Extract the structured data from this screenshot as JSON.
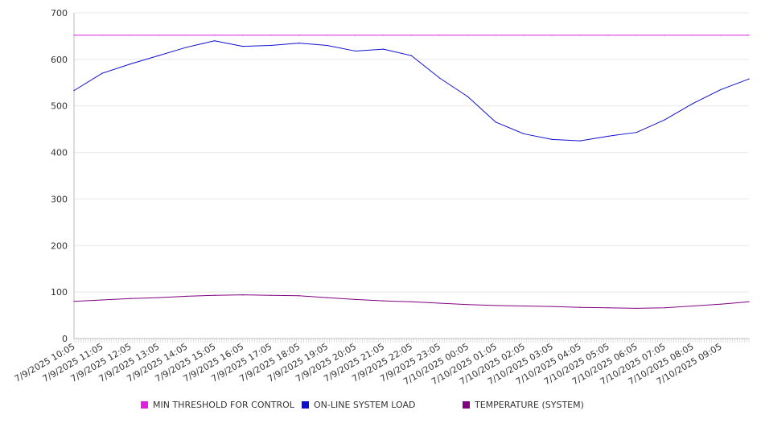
{
  "chart_data": {
    "type": "line",
    "ylim": [
      0,
      700
    ],
    "y_ticks": [
      0,
      100,
      200,
      300,
      400,
      500,
      600,
      700
    ],
    "x_tick_labels": [
      "7/9/2025 10:05",
      "7/9/2025 11:05",
      "7/9/2025 12:05",
      "7/9/2025 13:05",
      "7/9/2025 14:05",
      "7/9/2025 15:05",
      "7/9/2025 16:05",
      "7/9/2025 17:05",
      "7/9/2025 18:05",
      "7/9/2025 19:05",
      "7/9/2025 20:05",
      "7/9/2025 21:05",
      "7/9/2025 22:05",
      "7/9/2025 23:05",
      "7/10/2025 00:05",
      "7/10/2025 01:05",
      "7/10/2025 02:05",
      "7/10/2025 03:05",
      "7/10/2025 04:05",
      "7/10/2025 05:05",
      "7/10/2025 06:05",
      "7/10/2025 07:05",
      "7/10/2025 08:05",
      "7/10/2025 09:05"
    ],
    "grid": "horizontal",
    "legend_position": "bottom",
    "series": [
      {
        "name": "MIN THRESHOLD FOR CONTROL",
        "color": "#e020e0",
        "values": [
          652,
          652,
          652,
          652,
          652,
          652,
          652,
          652,
          652,
          652,
          652,
          652,
          652,
          652,
          652,
          652,
          652,
          652,
          652,
          652,
          652,
          652,
          652,
          652,
          652
        ]
      },
      {
        "name": "ON-LINE SYSTEM LOAD",
        "color": "#1010d0",
        "values": [
          533,
          570,
          590,
          608,
          626,
          640,
          628,
          630,
          635,
          630,
          618,
          622,
          608,
          560,
          520,
          465,
          440,
          428,
          425,
          435,
          443,
          470,
          505,
          535,
          558
        ]
      },
      {
        "name": "TEMPERATURE (SYSTEM)",
        "color": "#800080",
        "values": [
          80,
          83,
          86,
          88,
          91,
          93,
          94,
          93,
          92,
          88,
          84,
          81,
          79,
          76,
          73,
          71,
          70,
          69,
          67,
          66,
          65,
          66,
          70,
          74,
          79
        ]
      }
    ]
  }
}
